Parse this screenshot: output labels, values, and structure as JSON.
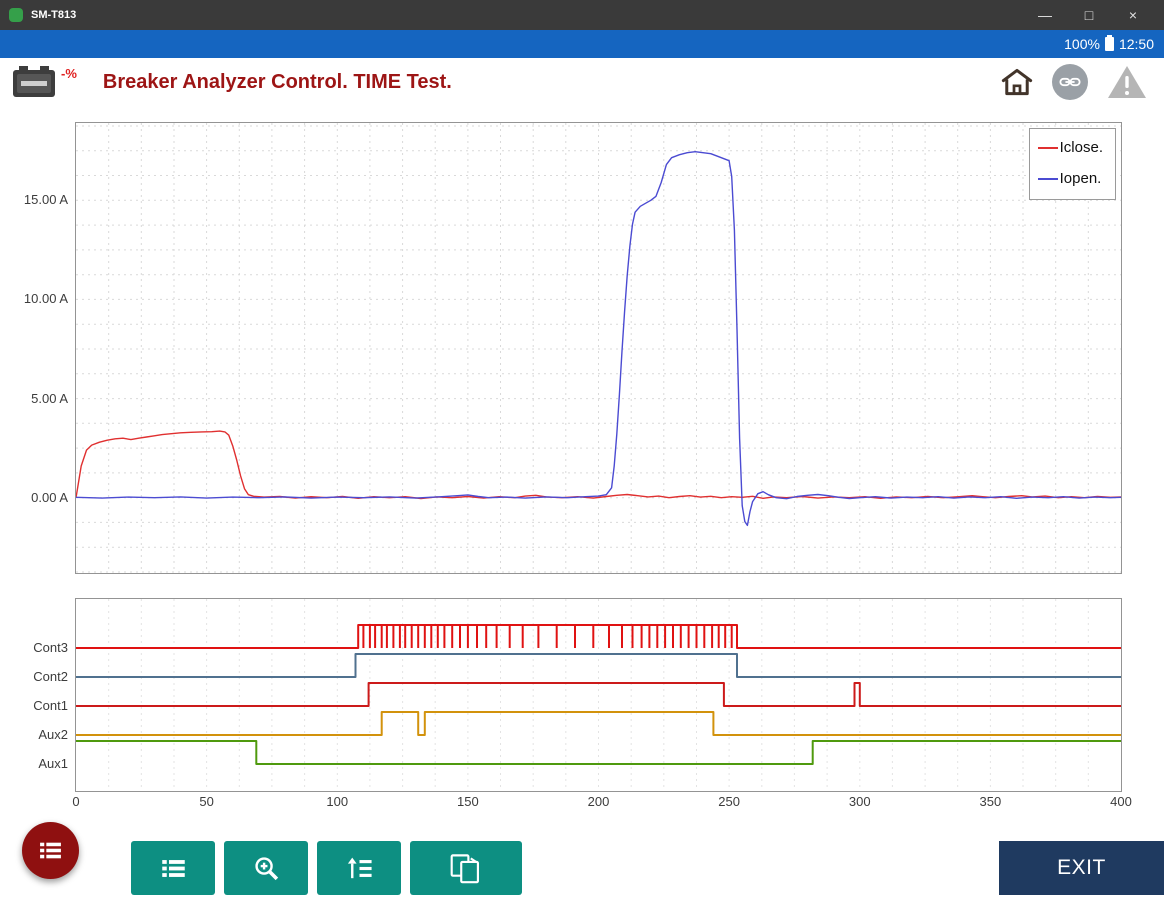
{
  "colors": {
    "titlebar": "#3a3a3a",
    "statusbar": "#1565c0",
    "title": "#9d1515",
    "teal": "#0d8f82",
    "fab": "#8f1010",
    "exit": "#1f3a60",
    "border": "#949494"
  },
  "window": {
    "title": "SM-T813",
    "minimize": "—",
    "maximize": "□",
    "close": "×"
  },
  "statusbar": {
    "battery": "100%",
    "time": "12:50"
  },
  "header": {
    "battery_label": "-%",
    "title": "Breaker Analyzer Control. TIME Test."
  },
  "toolbar": {
    "exit": "EXIT"
  },
  "chart_data": [
    {
      "type": "line",
      "title": "",
      "xlabel": "",
      "ylabel": "",
      "xlim": [
        0,
        400
      ],
      "ylim": [
        -3.8,
        18.9
      ],
      "grid": true,
      "legend_position": "top-right",
      "yticks": [
        {
          "value": 15,
          "label": "15.00 A"
        },
        {
          "value": 10,
          "label": "10.00 A"
        },
        {
          "value": 5,
          "label": "5.00 A"
        },
        {
          "value": 0,
          "label": "0.00 A"
        }
      ],
      "series": [
        {
          "name": "Iclose.",
          "color": "#e03030",
          "points": [
            [
              0,
              0
            ],
            [
              2,
              1.6
            ],
            [
              4,
              2.4
            ],
            [
              6,
              2.65
            ],
            [
              9,
              2.8
            ],
            [
              12,
              2.9
            ],
            [
              15,
              2.97
            ],
            [
              18,
              3.0
            ],
            [
              21,
              2.93
            ],
            [
              24,
              3.0
            ],
            [
              27,
              3.06
            ],
            [
              30,
              3.12
            ],
            [
              33,
              3.18
            ],
            [
              36,
              3.22
            ],
            [
              40,
              3.27
            ],
            [
              44,
              3.3
            ],
            [
              48,
              3.32
            ],
            [
              52,
              3.33
            ],
            [
              55,
              3.36
            ],
            [
              57,
              3.32
            ],
            [
              58.5,
              3.15
            ],
            [
              60,
              2.6
            ],
            [
              61.5,
              1.9
            ],
            [
              63,
              1.1
            ],
            [
              64.5,
              0.45
            ],
            [
              66,
              0.15
            ],
            [
              68,
              0.07
            ],
            [
              72,
              0.03
            ],
            [
              78,
              0.06
            ],
            [
              84,
              -0.02
            ],
            [
              90,
              0.05
            ],
            [
              96,
              0
            ],
            [
              102,
              0.06
            ],
            [
              108,
              -0.03
            ],
            [
              114,
              0.05
            ],
            [
              120,
              0
            ],
            [
              126,
              0.05
            ],
            [
              132,
              -0.04
            ],
            [
              138,
              0.04
            ],
            [
              144,
              0
            ],
            [
              150,
              0.06
            ],
            [
              156,
              -0.02
            ],
            [
              162,
              0.05
            ],
            [
              168,
              0
            ],
            [
              172,
              0.08
            ],
            [
              176,
              0.12
            ],
            [
              180,
              0.04
            ],
            [
              186,
              0
            ],
            [
              192,
              0.05
            ],
            [
              198,
              -0.02
            ],
            [
              203,
              0.06
            ],
            [
              207,
              0.12
            ],
            [
              211,
              0.16
            ],
            [
              215,
              0.1
            ],
            [
              219,
              0.04
            ],
            [
              223,
              0.08
            ],
            [
              227,
              0
            ],
            [
              231,
              0.06
            ],
            [
              235,
              0.1
            ],
            [
              239,
              0.03
            ],
            [
              243,
              0.07
            ],
            [
              247,
              0
            ],
            [
              251,
              0.05
            ],
            [
              255,
              0.02
            ],
            [
              259,
              0.07
            ],
            [
              263,
              -0.03
            ],
            [
              267,
              0.04
            ],
            [
              272,
              0
            ],
            [
              278,
              0.06
            ],
            [
              284,
              -0.02
            ],
            [
              290,
              0.04
            ],
            [
              296,
              0
            ],
            [
              302,
              0.05
            ],
            [
              308,
              -0.03
            ],
            [
              314,
              0.04
            ],
            [
              320,
              0
            ],
            [
              326,
              0.06
            ],
            [
              332,
              0
            ],
            [
              338,
              0.05
            ],
            [
              343,
              0.1
            ],
            [
              347,
              0.05
            ],
            [
              352,
              0
            ],
            [
              357,
              0.06
            ],
            [
              362,
              0.1
            ],
            [
              366,
              0.04
            ],
            [
              371,
              0.08
            ],
            [
              376,
              0
            ],
            [
              381,
              0.05
            ],
            [
              386,
              0
            ],
            [
              391,
              0.06
            ],
            [
              396,
              0.02
            ],
            [
              400,
              0.04
            ]
          ]
        },
        {
          "name": "Iopen.",
          "color": "#4b4bd2",
          "points": [
            [
              0,
              0.02
            ],
            [
              10,
              -0.02
            ],
            [
              20,
              0.03
            ],
            [
              30,
              0
            ],
            [
              40,
              0.04
            ],
            [
              50,
              -0.02
            ],
            [
              60,
              0.03
            ],
            [
              70,
              0
            ],
            [
              80,
              0.04
            ],
            [
              90,
              -0.02
            ],
            [
              100,
              0.03
            ],
            [
              110,
              0
            ],
            [
              120,
              0.04
            ],
            [
              130,
              -0.02
            ],
            [
              140,
              0.05
            ],
            [
              146,
              0.1
            ],
            [
              150,
              0.14
            ],
            [
              154,
              0.06
            ],
            [
              158,
              0
            ],
            [
              165,
              0.03
            ],
            [
              172,
              -0.02
            ],
            [
              180,
              0.04
            ],
            [
              188,
              0
            ],
            [
              195,
              0.05
            ],
            [
              200,
              0.08
            ],
            [
              203,
              0.15
            ],
            [
              205,
              0.5
            ],
            [
              206,
              1.6
            ],
            [
              207,
              3.2
            ],
            [
              208,
              5.2
            ],
            [
              209,
              7.4
            ],
            [
              210,
              9.4
            ],
            [
              211,
              11.2
            ],
            [
              212,
              12.7
            ],
            [
              213,
              13.8
            ],
            [
              214,
              14.4
            ],
            [
              216,
              14.7
            ],
            [
              218,
              14.85
            ],
            [
              220,
              15.0
            ],
            [
              222,
              15.2
            ],
            [
              224,
              15.9
            ],
            [
              226,
              16.8
            ],
            [
              228,
              17.15
            ],
            [
              231,
              17.3
            ],
            [
              234,
              17.4
            ],
            [
              237,
              17.45
            ],
            [
              240,
              17.4
            ],
            [
              243,
              17.35
            ],
            [
              246,
              17.2
            ],
            [
              248,
              17.1
            ],
            [
              250,
              17.0
            ],
            [
              251,
              16.2
            ],
            [
              252,
              13.5
            ],
            [
              253,
              8.5
            ],
            [
              254,
              3.0
            ],
            [
              255,
              -0.4
            ],
            [
              256,
              -1.2
            ],
            [
              257,
              -1.4
            ],
            [
              258,
              -0.7
            ],
            [
              259,
              -0.2
            ],
            [
              261,
              0.2
            ],
            [
              263,
              0.3
            ],
            [
              265,
              0.15
            ],
            [
              268,
              0
            ],
            [
              272,
              -0.05
            ],
            [
              276,
              0.06
            ],
            [
              280,
              0.12
            ],
            [
              284,
              0.16
            ],
            [
              288,
              0.1
            ],
            [
              292,
              0.02
            ],
            [
              296,
              -0.04
            ],
            [
              300,
              0
            ],
            [
              306,
              0.05
            ],
            [
              312,
              -0.02
            ],
            [
              318,
              0.03
            ],
            [
              324,
              0
            ],
            [
              330,
              0.05
            ],
            [
              336,
              -0.02
            ],
            [
              342,
              0.04
            ],
            [
              348,
              0
            ],
            [
              354,
              0.05
            ],
            [
              360,
              -0.03
            ],
            [
              366,
              0.03
            ],
            [
              372,
              0
            ],
            [
              378,
              0.05
            ],
            [
              384,
              -0.02
            ],
            [
              390,
              0.03
            ],
            [
              396,
              0
            ],
            [
              400,
              0.02
            ]
          ]
        }
      ]
    },
    {
      "type": "digital",
      "xlim": [
        0,
        400
      ],
      "grid": true,
      "xticks": [
        0,
        50,
        100,
        150,
        200,
        250,
        300,
        350,
        400
      ],
      "rows": [
        {
          "label": "Cont3",
          "color": "#e01212",
          "high": [
            [
              108,
              253
            ]
          ],
          "chatter": [
            110,
            112.5,
            114.5,
            117,
            119,
            121.5,
            124,
            126,
            128.5,
            131,
            133.5,
            136,
            138.5,
            141,
            144,
            147,
            150,
            153.5,
            157,
            161,
            166,
            171,
            177,
            184,
            191,
            198,
            204,
            209,
            213,
            216.5,
            219.5,
            222.5,
            225.5,
            228.5,
            231.5,
            234.5,
            237.5,
            240.5,
            243.5,
            246,
            248.5,
            251
          ]
        },
        {
          "label": "Cont2",
          "color": "#50718f",
          "high": [
            [
              107,
              253
            ]
          ],
          "chatter": []
        },
        {
          "label": "Cont1",
          "color": "#cc1a1a",
          "high": [
            [
              112,
              248
            ],
            [
              298,
              300
            ]
          ],
          "chatter": []
        },
        {
          "label": "Aux2",
          "color": "#d2920c",
          "high": [
            [
              117,
              131
            ],
            [
              133.5,
              244
            ]
          ],
          "chatter": []
        },
        {
          "label": "Aux1",
          "color": "#4f9a0e",
          "high": [
            [
              0,
              69
            ],
            [
              282,
              400
            ]
          ],
          "chatter": []
        }
      ]
    }
  ]
}
